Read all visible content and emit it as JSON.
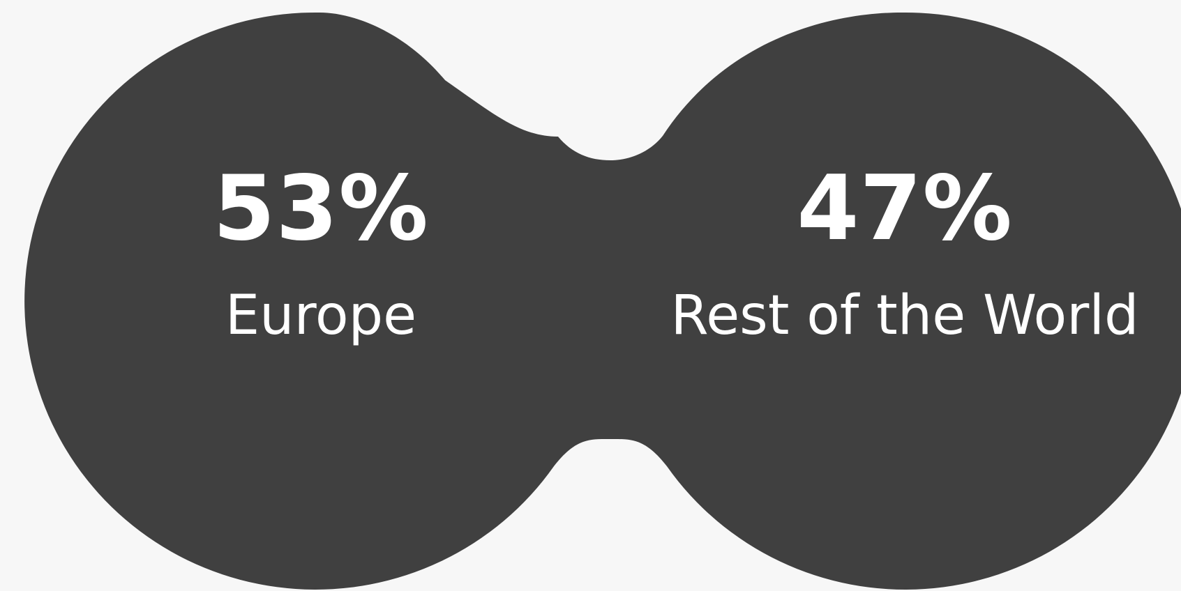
{
  "colors": {
    "background": "#f7f7f7",
    "shape": "#404040",
    "text": "#ffffff"
  },
  "segments": [
    {
      "value": "53%",
      "label": "Europe"
    },
    {
      "value": "47%",
      "label": "Rest of the World"
    }
  ]
}
